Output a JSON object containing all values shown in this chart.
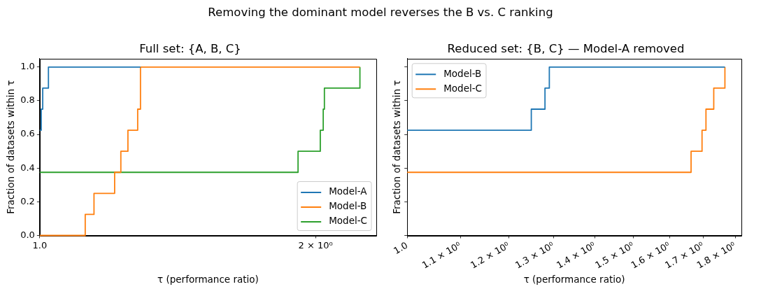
{
  "chart_data": [
    {
      "type": "other",
      "title": "Removing the dominant model reverses the B vs. C ranking"
    },
    {
      "type": "step",
      "title": "Full set: {A, B, C}",
      "xlabel": "τ (performance ratio)",
      "ylabel": "Fraction of datasets within τ",
      "log": "x",
      "xlim": [
        1.0,
        2.33
      ],
      "xticks": [
        {
          "value": 1,
          "label": "1.0"
        },
        {
          "value": 2,
          "label": "2 × 10⁰"
        }
      ],
      "ylim": [
        0,
        1.05
      ],
      "yticks": [
        {
          "value": 0,
          "label": "0.0"
        },
        0.2,
        0.4,
        0.6,
        0.8,
        {
          "value": 1,
          "label": "1.0"
        }
      ],
      "legend": "bottom right",
      "line_style": "solid",
      "series": [
        {
          "name": "Model-A",
          "color": "#1f77b4",
          "x": [
            1.0,
            1.0037,
            1.0074,
            1.022,
            1.288
          ],
          "values": [
            0.625,
            0.75,
            0.875,
            1.0,
            1.0
          ]
        },
        {
          "name": "Model-B",
          "color": "#ff7f0e",
          "x": [
            1.0,
            1.121,
            1.146,
            1.207,
            1.226,
            1.248,
            1.279,
            1.288,
            2.236
          ],
          "values": [
            0.0,
            0.125,
            0.25,
            0.375,
            0.5,
            0.625,
            0.75,
            1.0,
            1.0
          ]
        },
        {
          "name": "Model-C",
          "color": "#2ca02c",
          "x": [
            1.0,
            1.914,
            2.024,
            2.039,
            2.045,
            2.236
          ],
          "values": [
            0.375,
            0.5,
            0.625,
            0.75,
            0.875,
            1.0
          ]
        }
      ]
    },
    {
      "type": "step",
      "title": "Reduced set: {B, C} — Model-A removed",
      "xlabel": "τ (performance ratio)",
      "ylabel": "Fraction of datasets within τ",
      "log": "x",
      "xlim": [
        1.0,
        1.82
      ],
      "xticks": [
        {
          "value": 1,
          "label": "1.0"
        },
        {
          "value": 1.1,
          "label": "1.1 × 10⁰"
        },
        {
          "value": 1.2,
          "label": "1.2 × 10⁰"
        },
        {
          "value": 1.3,
          "label": "1.3 × 10⁰"
        },
        {
          "value": 1.4,
          "label": "1.4 × 10⁰"
        },
        {
          "value": 1.5,
          "label": "1.5 × 10⁰"
        },
        {
          "value": 1.6,
          "label": "1.6 × 10⁰"
        },
        {
          "value": 1.7,
          "label": "1.7 × 10⁰"
        },
        {
          "value": 1.8,
          "label": "1.8 × 10⁰"
        }
      ],
      "ylim": [
        0,
        1.05
      ],
      "yticks": [
        0,
        0.2,
        0.4,
        0.6,
        0.8,
        1
      ],
      "tick_labels": "x",
      "legend": "top left",
      "line_style": "solid",
      "series": [
        {
          "name": "Model-B",
          "color": "#1f77b4",
          "x": [
            1.0,
            1.249,
            1.28,
            1.29,
            1.767
          ],
          "values": [
            0.625,
            0.75,
            0.875,
            1.0,
            1.0
          ]
        },
        {
          "name": "Model-C",
          "color": "#ff7f0e",
          "x": [
            1.0,
            1.663,
            1.696,
            1.708,
            1.732,
            1.767
          ],
          "values": [
            0.375,
            0.5,
            0.625,
            0.75,
            0.875,
            1.0
          ]
        }
      ]
    }
  ]
}
